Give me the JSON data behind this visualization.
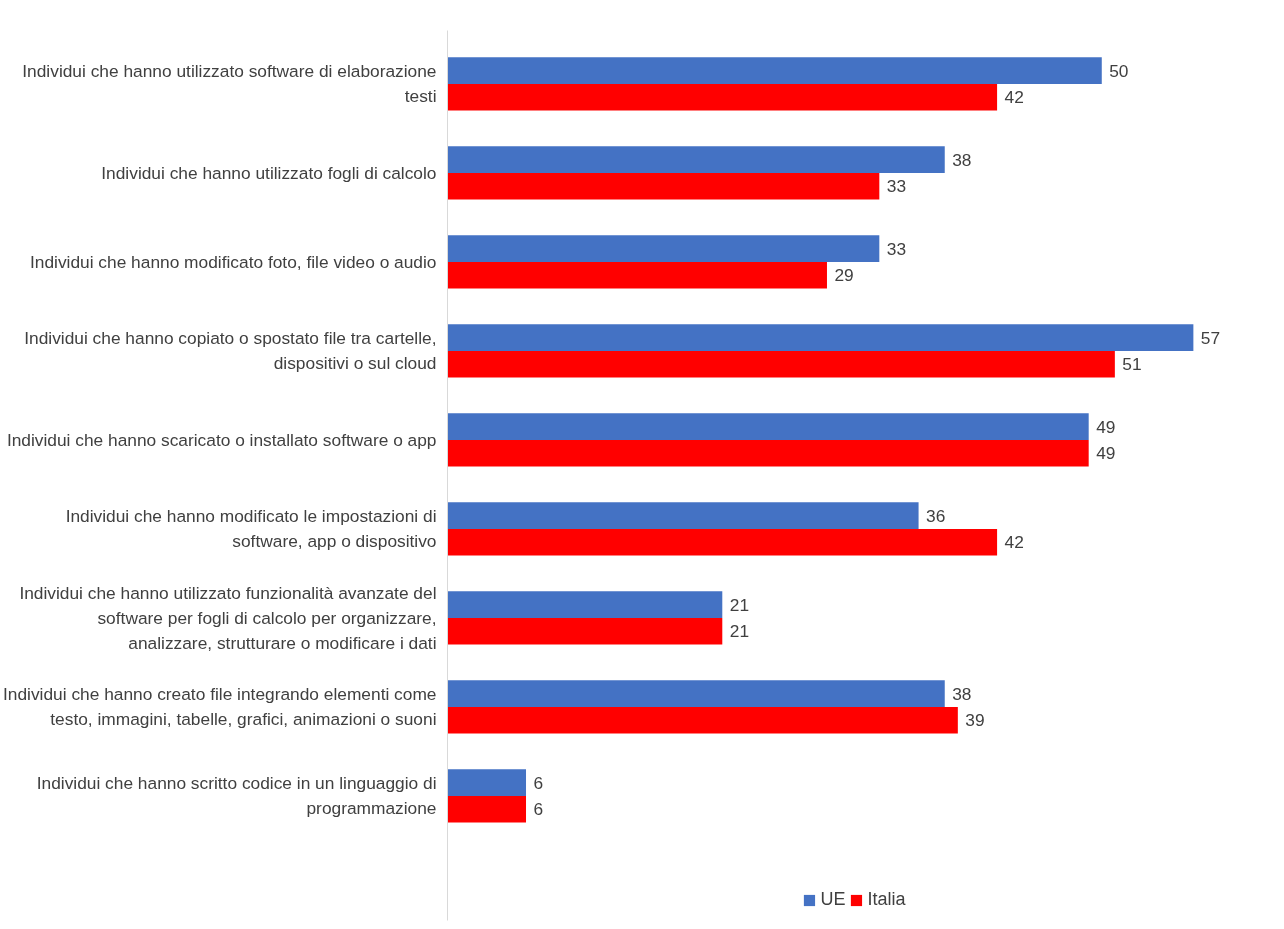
{
  "chart_data": {
    "type": "bar",
    "orientation": "horizontal",
    "data_labels": true,
    "grid": false,
    "legend": "bottom",
    "categories": [
      "Individui che hanno utilizzato software di elaborazione testi",
      "Individui che hanno utilizzato fogli di calcolo",
      "Individui che hanno modificato foto, file video o audio",
      "Individui che hanno copiato o spostato file tra cartelle, dispositivi o sul cloud",
      "Individui che hanno scaricato o installato software o app",
      "Individui che hanno modificato le impostazioni di software, app o dispositivo",
      "Individui che hanno utilizzato funzionalità avanzate del software per fogli di calcolo per organizzare, analizzare, strutturare o modificare i dati",
      "Individui che hanno creato file integrando elementi come testo, immagini, tabelle, grafici, animazioni o suoni",
      "Individui che hanno scritto codice in un linguaggio di programmazione"
    ],
    "series": [
      {
        "name": "UE",
        "color": "#4472c4",
        "values": [
          50,
          38,
          33,
          57,
          49,
          36,
          21,
          38,
          6
        ]
      },
      {
        "name": "Italia",
        "color": "#ff0000",
        "values": [
          42,
          33,
          29,
          51,
          49,
          42,
          21,
          39,
          6
        ]
      }
    ]
  }
}
